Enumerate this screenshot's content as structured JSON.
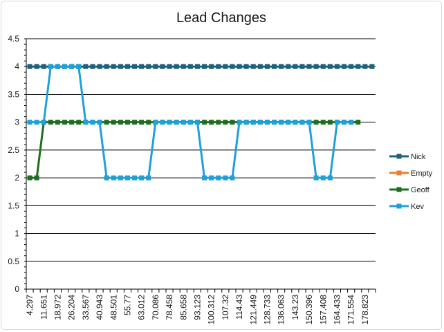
{
  "chart_data": {
    "type": "line",
    "title": "Lead Changes",
    "xlabel": "",
    "ylabel": "",
    "ylim": [
      0,
      4.5
    ],
    "ytick_step": 0.5,
    "ytick_labels": [
      "0",
      "0.5",
      "1",
      "1.5",
      "2",
      "2.5",
      "3",
      "3.5",
      "4",
      "4.5"
    ],
    "xtick_labels": [
      "4.297",
      "11.651",
      "18.972",
      "26.204",
      "33.567",
      "40.943",
      "48.501",
      "55.77",
      "63.012",
      "70.086",
      "78.458",
      "85.658",
      "93.123",
      "100.312",
      "107.32",
      "114.43",
      "121.449",
      "128.733",
      "136.063",
      "143.23",
      "150.396",
      "157.408",
      "164.433",
      "171.554",
      "178.823"
    ],
    "num_points": 50,
    "grid": true,
    "legend_position": "right",
    "series": [
      {
        "name": "Nick",
        "color": "#1f5f7f",
        "values": [
          4,
          4,
          4,
          4,
          4,
          4,
          4,
          4,
          4,
          4,
          4,
          4,
          4,
          4,
          4,
          4,
          4,
          4,
          4,
          4,
          4,
          4,
          4,
          4,
          4,
          4,
          4,
          4,
          4,
          4,
          4,
          4,
          4,
          4,
          4,
          4,
          4,
          4,
          4,
          4,
          4,
          4,
          4,
          4,
          4,
          4,
          4,
          4,
          4,
          4
        ]
      },
      {
        "name": "Empty",
        "color": "#ed7d31",
        "values": []
      },
      {
        "name": "Geoff",
        "color": "#1e6e1e",
        "values": [
          2,
          2,
          3,
          3,
          3,
          3,
          3,
          3,
          3,
          3,
          3,
          3,
          3,
          3,
          3,
          3,
          3,
          3,
          3,
          3,
          3,
          3,
          3,
          3,
          3,
          3,
          3,
          3,
          3,
          3,
          3,
          3,
          3,
          3,
          3,
          3,
          3,
          3,
          3,
          3,
          3,
          3,
          3,
          3,
          3,
          3,
          3,
          3
        ]
      },
      {
        "name": "Kev",
        "color": "#1ea0d8",
        "values": [
          3,
          3,
          3,
          4,
          4,
          4,
          4,
          4,
          3,
          3,
          3,
          2,
          2,
          2,
          2,
          2,
          2,
          2,
          3,
          3,
          3,
          3,
          3,
          3,
          3,
          2,
          2,
          2,
          2,
          2,
          3,
          3,
          3,
          3,
          3,
          3,
          3,
          3,
          3,
          3,
          3,
          2,
          2,
          2,
          3,
          3,
          3
        ]
      }
    ]
  }
}
